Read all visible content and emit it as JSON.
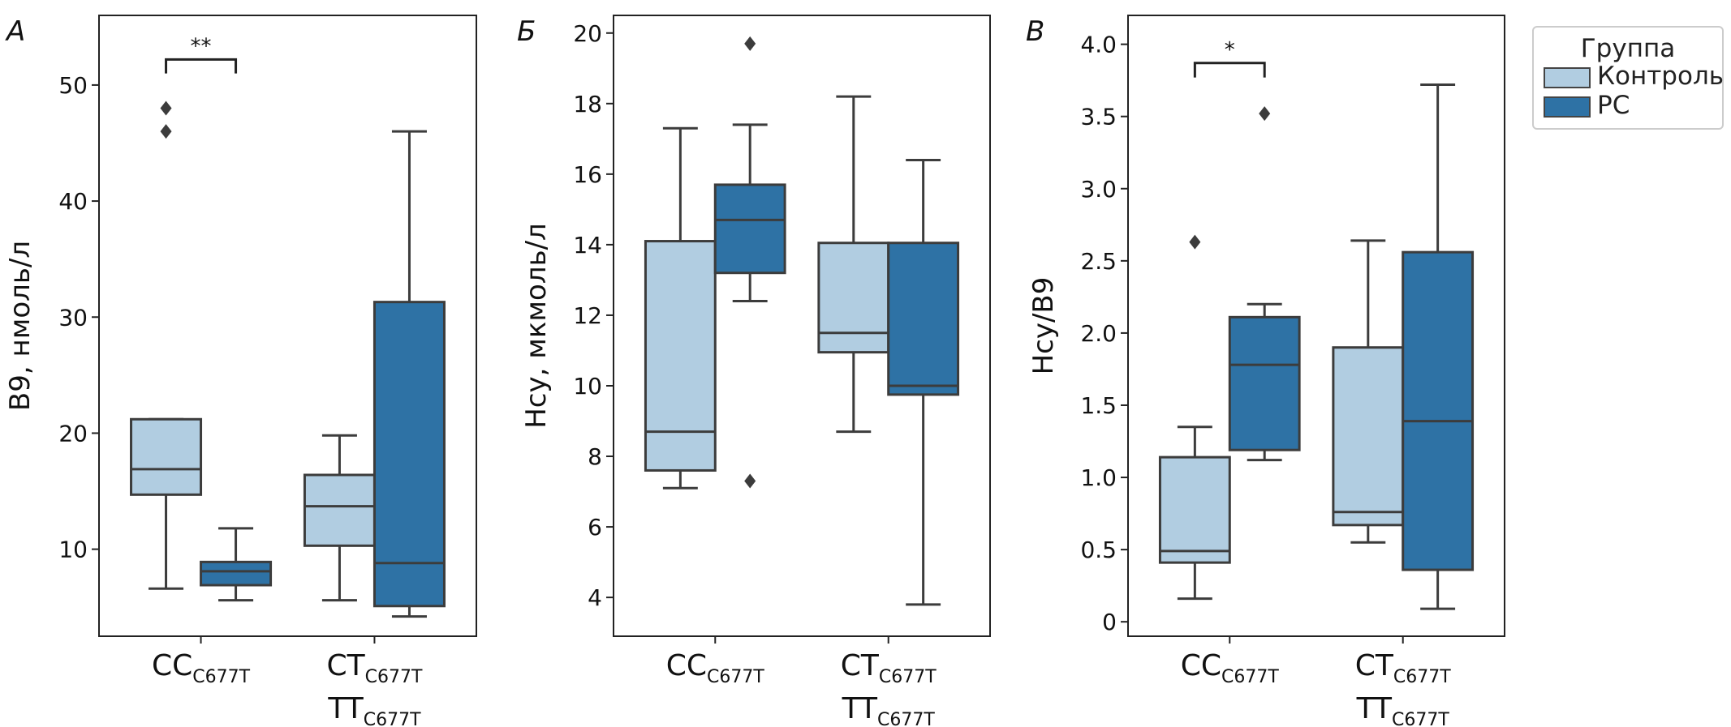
{
  "colors": {
    "control": "#b1cde1",
    "ms": "#2e72a5",
    "line": "#3c3c3c"
  },
  "legend": {
    "title": "Группа",
    "items": [
      "Контроль",
      "РС"
    ]
  },
  "chart_data": [
    {
      "type": "box",
      "panel_letter": "А",
      "ylabel": "B9, нмоль/л",
      "ylim": [
        2.5,
        56
      ],
      "yticks": [
        10,
        20,
        30,
        40,
        50
      ],
      "categories": [
        {
          "lines": [
            {
              "main": "CC",
              "sub": "C677T"
            }
          ]
        },
        {
          "lines": [
            {
              "main": "CT",
              "sub": "C677T"
            },
            {
              "main": "TT",
              "sub": "C677T"
            }
          ]
        }
      ],
      "series": [
        {
          "name": "Контроль",
          "boxes": [
            {
              "whislo": 6.6,
              "q1": 14.7,
              "med": 16.9,
              "q3": 21.2,
              "whishi": 21.2,
              "fliers": [
                46,
                48
              ]
            },
            {
              "whislo": 5.6,
              "q1": 10.3,
              "med": 13.7,
              "q3": 16.4,
              "whishi": 19.8,
              "fliers": []
            }
          ]
        },
        {
          "name": "РС",
          "boxes": [
            {
              "whislo": 5.6,
              "q1": 6.9,
              "med": 8.1,
              "q3": 8.9,
              "whishi": 11.8,
              "fliers": []
            },
            {
              "whislo": 4.2,
              "q1": 5.1,
              "med": 8.8,
              "q3": 31.3,
              "whishi": 46,
              "fliers": []
            }
          ]
        }
      ],
      "annotations": [
        {
          "text": "**",
          "category": 0,
          "y": 52.2,
          "tip": 51.0
        }
      ]
    },
    {
      "type": "box",
      "panel_letter": "Б",
      "ylabel": "Hcy, мкмоль/л",
      "ylim": [
        2.9,
        20.5
      ],
      "yticks": [
        4,
        6,
        8,
        10,
        12,
        14,
        16,
        18,
        20
      ],
      "categories": [
        {
          "lines": [
            {
              "main": "CC",
              "sub": "C677T"
            }
          ]
        },
        {
          "lines": [
            {
              "main": "CT",
              "sub": "C677T"
            },
            {
              "main": "TT",
              "sub": "C677T"
            }
          ]
        }
      ],
      "series": [
        {
          "name": "Контроль",
          "boxes": [
            {
              "whislo": 7.1,
              "q1": 7.6,
              "med": 8.7,
              "q3": 14.1,
              "whishi": 17.3,
              "fliers": []
            },
            {
              "whislo": 8.7,
              "q1": 10.95,
              "med": 11.5,
              "q3": 14.05,
              "whishi": 18.2,
              "fliers": []
            }
          ]
        },
        {
          "name": "РС",
          "boxes": [
            {
              "whislo": 12.4,
              "q1": 13.2,
              "med": 14.7,
              "q3": 15.7,
              "whishi": 17.4,
              "fliers": [
                7.3,
                19.7
              ]
            },
            {
              "whislo": 3.8,
              "q1": 9.75,
              "med": 10.0,
              "q3": 14.05,
              "whishi": 16.4,
              "fliers": []
            }
          ]
        }
      ],
      "annotations": []
    },
    {
      "type": "box",
      "panel_letter": "В",
      "ylabel": "Hcy/B9",
      "ylim": [
        -0.1,
        4.2
      ],
      "yticks": [
        0,
        0.5,
        1.0,
        1.5,
        2.0,
        2.5,
        3.0,
        3.5,
        4.0
      ],
      "ytick_labels": [
        "0",
        "0.5",
        "1.0",
        "1.5",
        "2.0",
        "2.5",
        "3.0",
        "3.5",
        "4.0"
      ],
      "categories": [
        {
          "lines": [
            {
              "main": "CC",
              "sub": "C677T"
            }
          ]
        },
        {
          "lines": [
            {
              "main": "CT",
              "sub": "C677T"
            },
            {
              "main": "TT",
              "sub": "C677T"
            }
          ]
        }
      ],
      "series": [
        {
          "name": "Контроль",
          "boxes": [
            {
              "whislo": 0.16,
              "q1": 0.41,
              "med": 0.49,
              "q3": 1.14,
              "whishi": 1.35,
              "fliers": [
                2.63
              ]
            },
            {
              "whislo": 0.55,
              "q1": 0.67,
              "med": 0.76,
              "q3": 1.9,
              "whishi": 2.64,
              "fliers": []
            }
          ]
        },
        {
          "name": "РС",
          "boxes": [
            {
              "whislo": 1.12,
              "q1": 1.19,
              "med": 1.78,
              "q3": 2.11,
              "whishi": 2.2,
              "fliers": [
                3.52
              ]
            },
            {
              "whislo": 0.09,
              "q1": 0.36,
              "med": 1.39,
              "q3": 2.56,
              "whishi": 3.72,
              "fliers": []
            }
          ]
        }
      ],
      "annotations": [
        {
          "text": "*",
          "category": 0,
          "y": 3.87,
          "tip": 3.77
        }
      ]
    }
  ]
}
